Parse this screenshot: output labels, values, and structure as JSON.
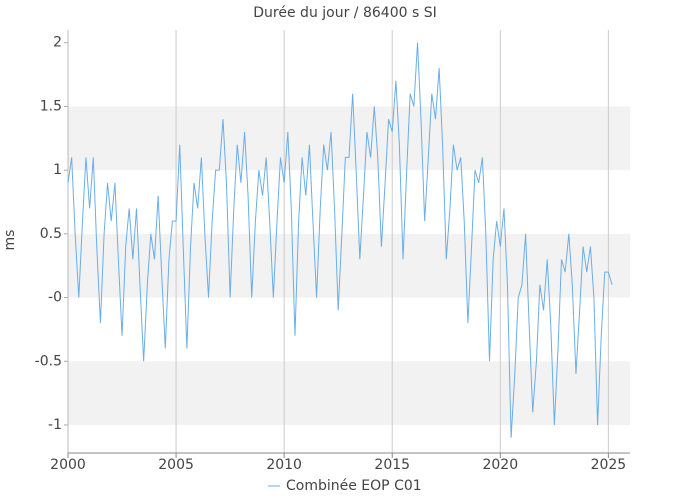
{
  "chart_data": {
    "type": "line",
    "title": "Durée du jour / 86400 s SI",
    "y_label": "ms",
    "x": [
      2000,
      2000.17,
      2000.33,
      2000.5,
      2000.67,
      2000.83,
      2001,
      2001.17,
      2001.33,
      2001.5,
      2001.67,
      2001.83,
      2002,
      2002.17,
      2002.33,
      2002.5,
      2002.67,
      2002.83,
      2003,
      2003.17,
      2003.33,
      2003.5,
      2003.67,
      2003.83,
      2004,
      2004.17,
      2004.33,
      2004.5,
      2004.67,
      2004.83,
      2005,
      2005.17,
      2005.33,
      2005.5,
      2005.67,
      2005.83,
      2006,
      2006.17,
      2006.33,
      2006.5,
      2006.67,
      2006.83,
      2007,
      2007.17,
      2007.33,
      2007.5,
      2007.67,
      2007.83,
      2008,
      2008.17,
      2008.33,
      2008.5,
      2008.67,
      2008.83,
      2009,
      2009.17,
      2009.33,
      2009.5,
      2009.67,
      2009.83,
      2010,
      2010.17,
      2010.33,
      2010.5,
      2010.67,
      2010.83,
      2011,
      2011.17,
      2011.33,
      2011.5,
      2011.67,
      2011.83,
      2012,
      2012.17,
      2012.33,
      2012.5,
      2012.67,
      2012.83,
      2013,
      2013.17,
      2013.33,
      2013.5,
      2013.67,
      2013.83,
      2014,
      2014.17,
      2014.33,
      2014.5,
      2014.67,
      2014.83,
      2015,
      2015.17,
      2015.33,
      2015.5,
      2015.67,
      2015.83,
      2016,
      2016.17,
      2016.33,
      2016.5,
      2016.67,
      2016.83,
      2017,
      2017.17,
      2017.33,
      2017.5,
      2017.67,
      2017.83,
      2018,
      2018.17,
      2018.33,
      2018.5,
      2018.67,
      2018.83,
      2019,
      2019.17,
      2019.33,
      2019.5,
      2019.67,
      2019.83,
      2020,
      2020.17,
      2020.33,
      2020.5,
      2020.67,
      2020.83,
      2021,
      2021.17,
      2021.33,
      2021.5,
      2021.67,
      2021.83,
      2022,
      2022.17,
      2022.33,
      2022.5,
      2022.67,
      2022.83,
      2023,
      2023.17,
      2023.33,
      2023.5,
      2023.67,
      2023.83,
      2024,
      2024.17,
      2024.33,
      2024.5,
      2024.67,
      2024.83,
      2025,
      2025.17
    ],
    "series": [
      {
        "name": "Combinée EOP C01",
        "color": "#6aaee8",
        "values": [
          0.9,
          1.1,
          0.5,
          0.0,
          0.6,
          1.1,
          0.7,
          1.1,
          0.4,
          -0.2,
          0.5,
          0.9,
          0.6,
          0.9,
          0.3,
          -0.3,
          0.4,
          0.7,
          0.3,
          0.7,
          0.1,
          -0.5,
          0.1,
          0.5,
          0.3,
          0.8,
          0.2,
          -0.4,
          0.3,
          0.6,
          0.6,
          1.2,
          0.4,
          -0.4,
          0.4,
          0.9,
          0.7,
          1.1,
          0.5,
          0.0,
          0.6,
          1.0,
          1.0,
          1.4,
          0.9,
          0.0,
          0.7,
          1.2,
          0.9,
          1.3,
          0.8,
          0.0,
          0.6,
          1.0,
          0.8,
          1.1,
          0.6,
          0.0,
          0.6,
          1.1,
          0.9,
          1.3,
          0.7,
          -0.3,
          0.6,
          1.1,
          0.8,
          1.2,
          0.6,
          0.0,
          0.7,
          1.2,
          1.0,
          1.3,
          0.7,
          -0.1,
          0.5,
          1.1,
          1.1,
          1.6,
          1.0,
          0.3,
          0.8,
          1.3,
          1.1,
          1.5,
          1.1,
          0.4,
          0.9,
          1.4,
          1.3,
          1.7,
          1.2,
          0.3,
          1.0,
          1.6,
          1.5,
          2.0,
          1.4,
          0.6,
          1.1,
          1.6,
          1.4,
          1.8,
          1.2,
          0.3,
          0.7,
          1.2,
          1.0,
          1.1,
          0.6,
          -0.2,
          0.4,
          1.0,
          0.9,
          1.1,
          0.5,
          -0.5,
          0.3,
          0.6,
          0.4,
          0.7,
          0.1,
          -1.1,
          -0.6,
          0.0,
          0.1,
          0.5,
          -0.2,
          -0.9,
          -0.5,
          0.1,
          -0.1,
          0.3,
          -0.2,
          -1.0,
          -0.4,
          0.3,
          0.2,
          0.5,
          0.1,
          -0.6,
          -0.1,
          0.4,
          0.2,
          0.4,
          0.0,
          -1.0,
          -0.3,
          0.2,
          0.2,
          0.1
        ]
      }
    ],
    "xlim": [
      2000,
      2026
    ],
    "xticks": [
      2000,
      2005,
      2010,
      2015,
      2020,
      2025
    ],
    "ylim": [
      -1.22,
      2.1
    ],
    "yticks": [
      -1,
      -0.5,
      {
        "value": 0,
        "label": "-0"
      },
      0.5,
      1,
      1.5,
      2
    ],
    "grid": true,
    "legend": "bottom"
  }
}
